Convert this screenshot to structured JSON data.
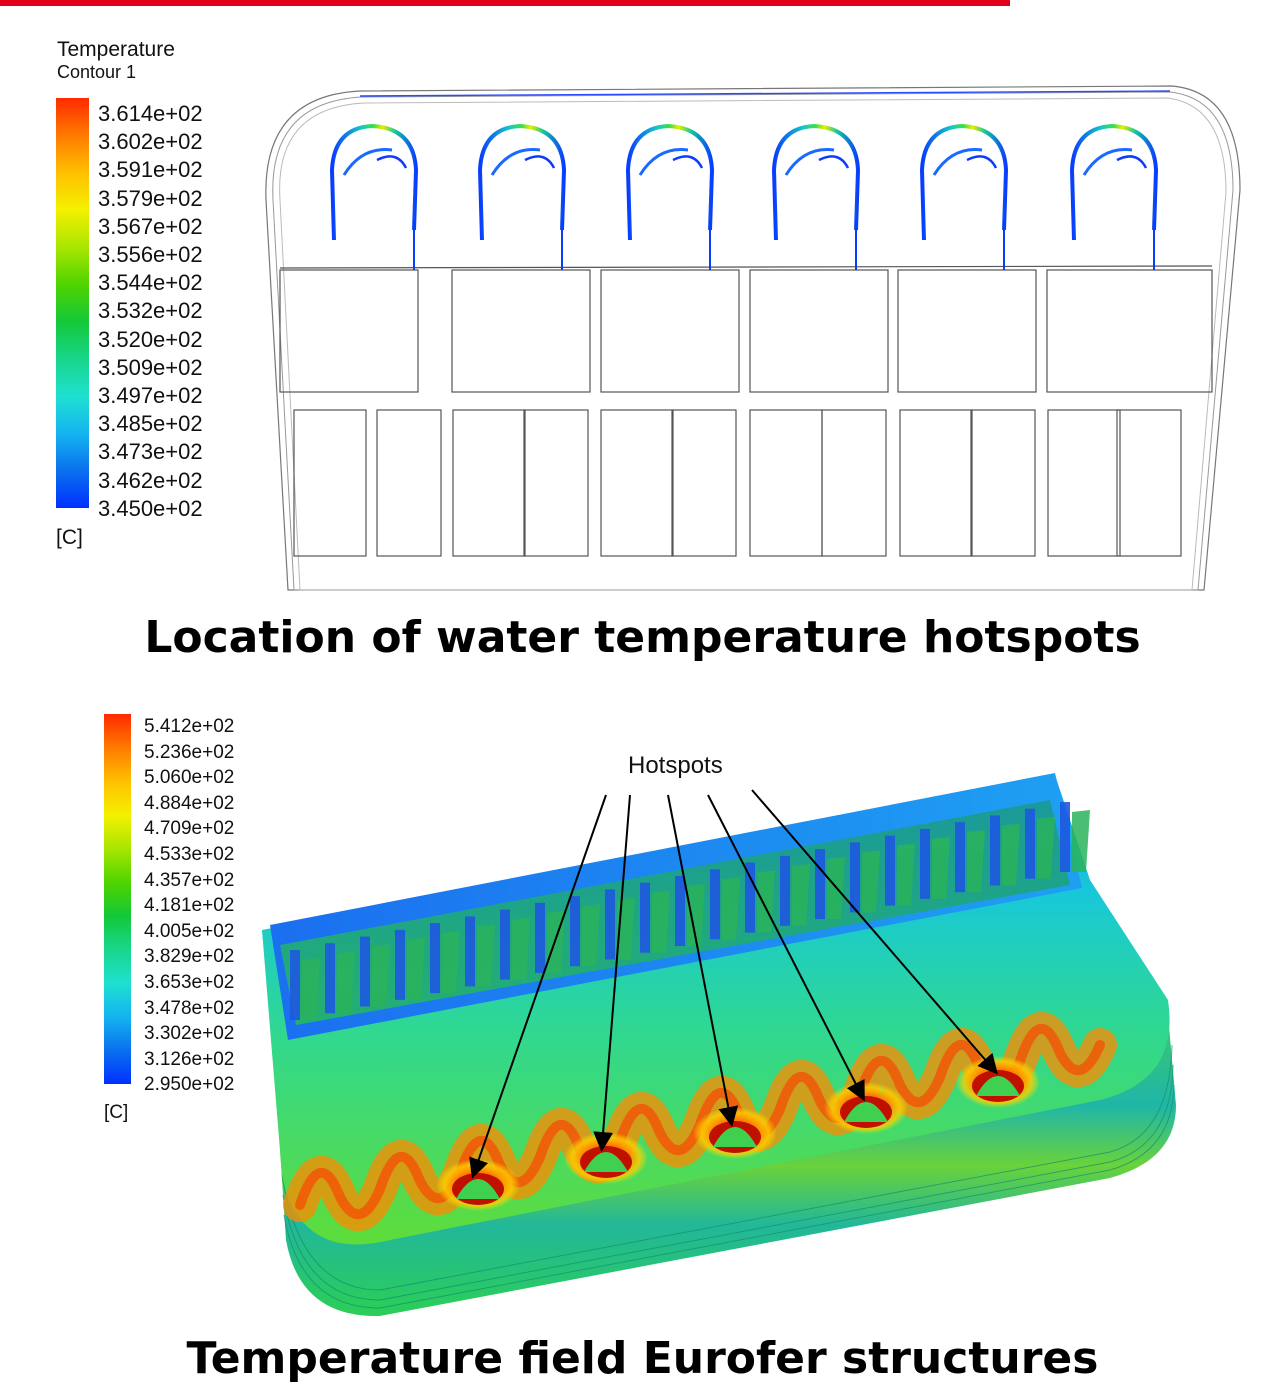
{
  "top": {
    "legend": {
      "title": "Temperature",
      "subtitle": "Contour 1",
      "unit": "[C]",
      "ticks": [
        "3.614e+02",
        "3.602e+02",
        "3.591e+02",
        "3.579e+02",
        "3.567e+02",
        "3.556e+02",
        "3.544e+02",
        "3.532e+02",
        "3.520e+02",
        "3.509e+02",
        "3.497e+02",
        "3.485e+02",
        "3.473e+02",
        "3.462e+02",
        "3.450e+02"
      ]
    },
    "caption": "Location of water temperature hotspots"
  },
  "bottom": {
    "legend": {
      "unit": "[C]",
      "ticks": [
        "5.412e+02",
        "5.236e+02",
        "5.060e+02",
        "4.884e+02",
        "4.709e+02",
        "4.533e+02",
        "4.357e+02",
        "4.181e+02",
        "4.005e+02",
        "3.829e+02",
        "3.653e+02",
        "3.478e+02",
        "3.302e+02",
        "3.126e+02",
        "2.950e+02"
      ]
    },
    "annotation": "Hotspots",
    "caption": "Temperature field Eurofer structures"
  },
  "colors": {
    "accent_bar": "#e3001b",
    "colormap": [
      "#ff2a00",
      "#ff7a00",
      "#ffc000",
      "#f4f000",
      "#a8e600",
      "#4fd400",
      "#13c838",
      "#18d68a",
      "#1fe0d0",
      "#14b4f0",
      "#0a70ee",
      "#0030ff"
    ]
  }
}
